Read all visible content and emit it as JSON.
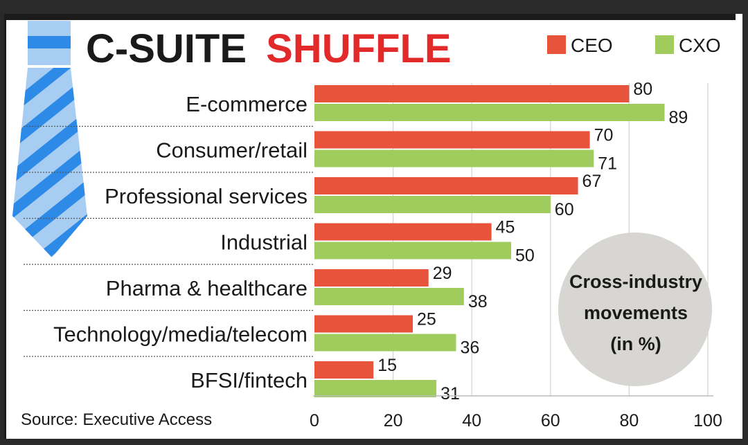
{
  "title": {
    "part1": "C-SUITE",
    "part2": "SHUFFLE"
  },
  "colors": {
    "ceo": "#e8533c",
    "cxo": "#9fcc5d",
    "title_dark": "#1a1a1a",
    "title_red": "#e22a2a",
    "badge": "#d7d6d2",
    "tie_light": "#a7cdf2",
    "tie_dark": "#2d8ae6"
  },
  "badge": {
    "line1": "Cross-industry",
    "line2": "movements",
    "line3": "(in %)"
  },
  "source": "Source: Executive Access",
  "chart_data": {
    "type": "bar",
    "orientation": "horizontal",
    "categories": [
      "E-commerce",
      "Consumer/retail",
      "Professional services",
      "Industrial",
      "Pharma & healthcare",
      "Technology/media/telecom",
      "BFSI/fintech"
    ],
    "series": [
      {
        "name": "CEO",
        "values": [
          80,
          70,
          67,
          45,
          29,
          25,
          15
        ]
      },
      {
        "name": "CXO",
        "values": [
          89,
          71,
          60,
          50,
          38,
          36,
          31
        ]
      }
    ],
    "xlim": [
      0,
      100
    ],
    "xticks": [
      "0",
      "20",
      "40",
      "60",
      "80",
      "100"
    ],
    "legend": "top-right",
    "title": "C-SUITE SHUFFLE",
    "xlabel": "",
    "ylabel": ""
  }
}
